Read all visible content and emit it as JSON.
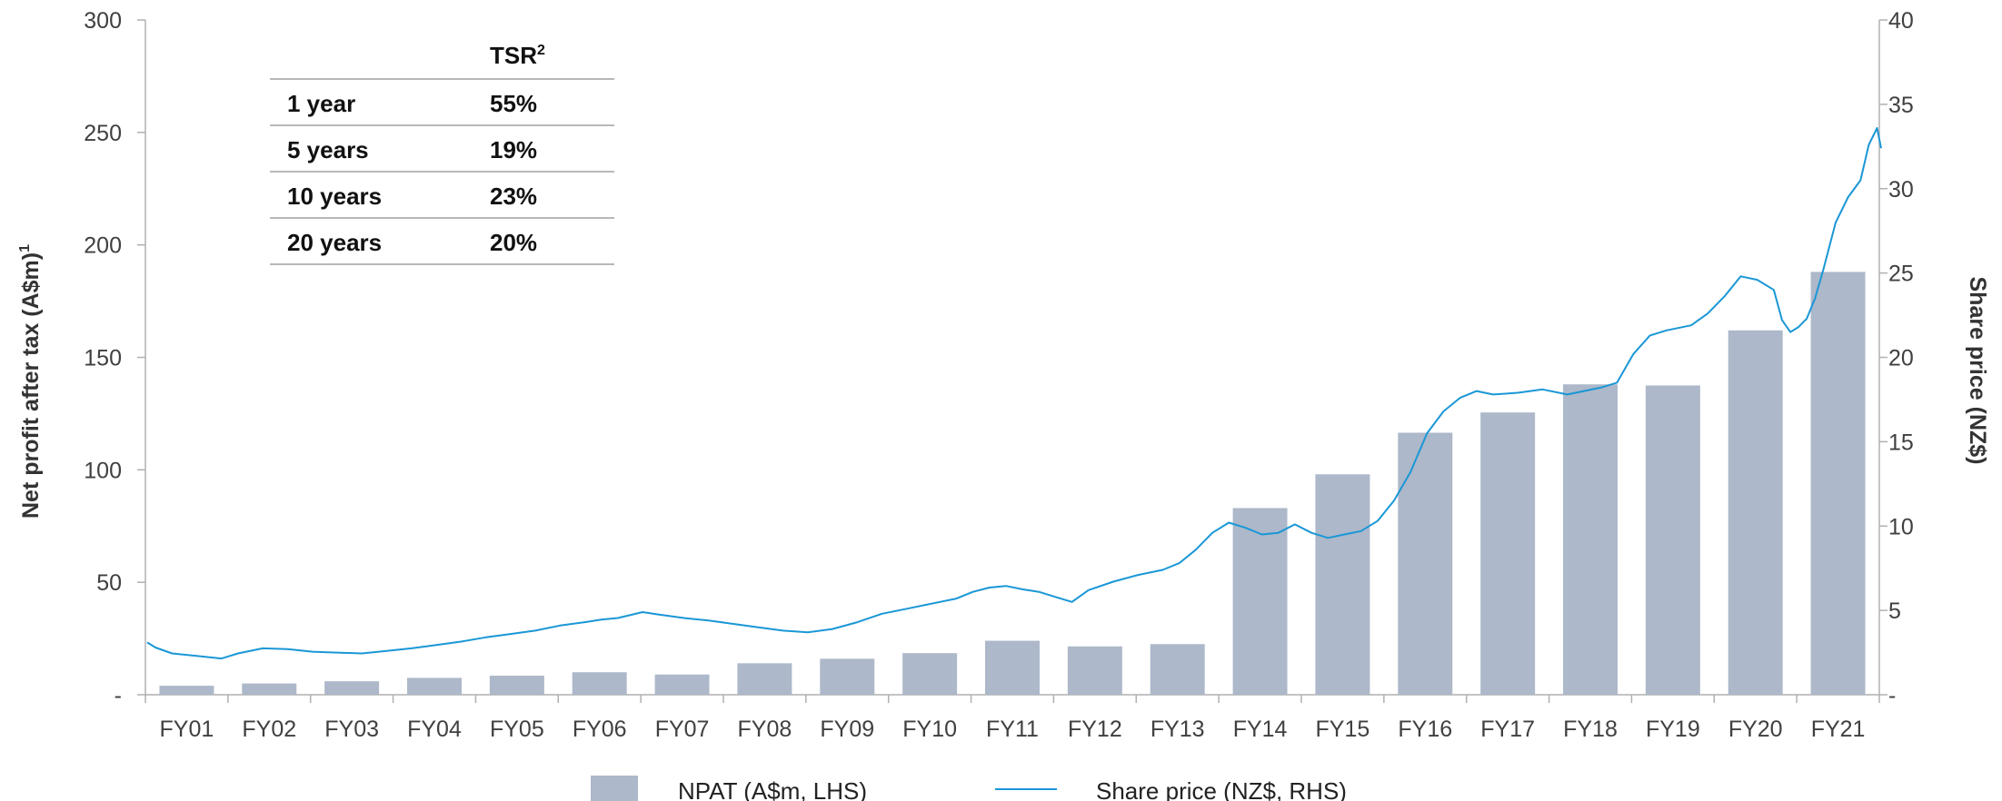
{
  "chart_data": {
    "type": "bar",
    "categories": [
      "FY01",
      "FY02",
      "FY03",
      "FY04",
      "FY05",
      "FY06",
      "FY07",
      "FY08",
      "FY09",
      "FY10",
      "FY11",
      "FY12",
      "FY13",
      "FY14",
      "FY15",
      "FY16",
      "FY17",
      "FY18",
      "FY19",
      "FY20",
      "FY21"
    ],
    "series": [
      {
        "name": "NPAT (A$m, LHS)",
        "axis": "left",
        "type": "bar",
        "values": [
          4,
          5,
          6,
          7.5,
          8.5,
          10,
          9,
          14,
          16,
          18.5,
          24,
          21.5,
          22.5,
          83,
          98,
          116.5,
          125.5,
          138,
          137.5,
          162,
          188
        ],
        "color": "#adb8ca"
      },
      {
        "name": "Share price (NZ$, RHS)",
        "axis": "right",
        "type": "line",
        "color": "#1a97d6",
        "points": [
          [
            0.0,
            3.1
          ],
          [
            0.1,
            2.8
          ],
          [
            0.3,
            2.45
          ],
          [
            0.6,
            2.3
          ],
          [
            0.9,
            2.15
          ],
          [
            1.1,
            2.45
          ],
          [
            1.4,
            2.75
          ],
          [
            1.7,
            2.7
          ],
          [
            2.0,
            2.55
          ],
          [
            2.3,
            2.5
          ],
          [
            2.6,
            2.45
          ],
          [
            2.9,
            2.6
          ],
          [
            3.2,
            2.75
          ],
          [
            3.5,
            2.95
          ],
          [
            3.8,
            3.15
          ],
          [
            4.1,
            3.4
          ],
          [
            4.4,
            3.6
          ],
          [
            4.7,
            3.8
          ],
          [
            5.0,
            4.1
          ],
          [
            5.3,
            4.3
          ],
          [
            5.5,
            4.45
          ],
          [
            5.7,
            4.55
          ],
          [
            6.0,
            4.9
          ],
          [
            6.2,
            4.75
          ],
          [
            6.5,
            4.55
          ],
          [
            6.8,
            4.4
          ],
          [
            7.1,
            4.2
          ],
          [
            7.4,
            4.0
          ],
          [
            7.7,
            3.8
          ],
          [
            8.0,
            3.7
          ],
          [
            8.3,
            3.9
          ],
          [
            8.6,
            4.3
          ],
          [
            8.9,
            4.8
          ],
          [
            9.2,
            5.1
          ],
          [
            9.5,
            5.4
          ],
          [
            9.8,
            5.7
          ],
          [
            10.0,
            6.1
          ],
          [
            10.2,
            6.35
          ],
          [
            10.4,
            6.45
          ],
          [
            10.6,
            6.25
          ],
          [
            10.8,
            6.1
          ],
          [
            11.0,
            5.8
          ],
          [
            11.2,
            5.5
          ],
          [
            11.4,
            6.2
          ],
          [
            11.7,
            6.7
          ],
          [
            12.0,
            7.1
          ],
          [
            12.3,
            7.4
          ],
          [
            12.5,
            7.8
          ],
          [
            12.7,
            8.6
          ],
          [
            12.9,
            9.6
          ],
          [
            13.1,
            10.2
          ],
          [
            13.3,
            9.9
          ],
          [
            13.5,
            9.5
          ],
          [
            13.7,
            9.6
          ],
          [
            13.9,
            10.1
          ],
          [
            14.1,
            9.6
          ],
          [
            14.3,
            9.3
          ],
          [
            14.5,
            9.5
          ],
          [
            14.7,
            9.7
          ],
          [
            14.9,
            10.3
          ],
          [
            15.1,
            11.5
          ],
          [
            15.3,
            13.2
          ],
          [
            15.5,
            15.5
          ],
          [
            15.7,
            16.8
          ],
          [
            15.9,
            17.6
          ],
          [
            16.1,
            18.0
          ],
          [
            16.3,
            17.8
          ],
          [
            16.6,
            17.9
          ],
          [
            16.9,
            18.1
          ],
          [
            17.2,
            17.8
          ],
          [
            17.4,
            18.0
          ],
          [
            17.6,
            18.2
          ],
          [
            17.8,
            18.5
          ],
          [
            18.0,
            20.2
          ],
          [
            18.2,
            21.3
          ],
          [
            18.4,
            21.6
          ],
          [
            18.7,
            21.9
          ],
          [
            18.9,
            22.6
          ],
          [
            19.1,
            23.6
          ],
          [
            19.3,
            24.8
          ],
          [
            19.5,
            24.6
          ],
          [
            19.7,
            24.0
          ],
          [
            19.8,
            22.2
          ],
          [
            19.9,
            21.5
          ],
          [
            20.0,
            21.8
          ],
          [
            20.1,
            22.3
          ],
          [
            20.2,
            23.5
          ],
          [
            20.3,
            25.2
          ],
          [
            20.45,
            28.0
          ],
          [
            20.6,
            29.5
          ],
          [
            20.75,
            30.5
          ],
          [
            20.85,
            32.6
          ],
          [
            20.95,
            33.6
          ],
          [
            21.0,
            32.4
          ]
        ]
      }
    ],
    "ylabel": "Net profit after tax (A$m)",
    "ylabel_superscript": "1",
    "y2label": "Share price (NZ$)",
    "ylim": [
      0,
      300
    ],
    "y2lim": [
      0,
      40
    ],
    "yticks": [
      "-",
      "50",
      "100",
      "150",
      "200",
      "250",
      "300"
    ],
    "y2ticks": [
      "-",
      "5",
      "10",
      "15",
      "20",
      "25",
      "30",
      "35",
      "40"
    ],
    "grid": false,
    "legend_position": "bottom",
    "legend": [
      {
        "label": "NPAT (A$m, LHS)",
        "kind": "bar",
        "color": "#adb8ca"
      },
      {
        "label": "Share price (NZ$, RHS)",
        "kind": "line",
        "color": "#1a97d6"
      }
    ]
  },
  "tsr_table": {
    "header": "TSR",
    "header_superscript": "2",
    "rows": [
      {
        "period": "1 year",
        "value": "55%"
      },
      {
        "period": "5 years",
        "value": "19%"
      },
      {
        "period": "10 years",
        "value": "23%"
      },
      {
        "period": "20 years",
        "value": "20%"
      }
    ]
  }
}
